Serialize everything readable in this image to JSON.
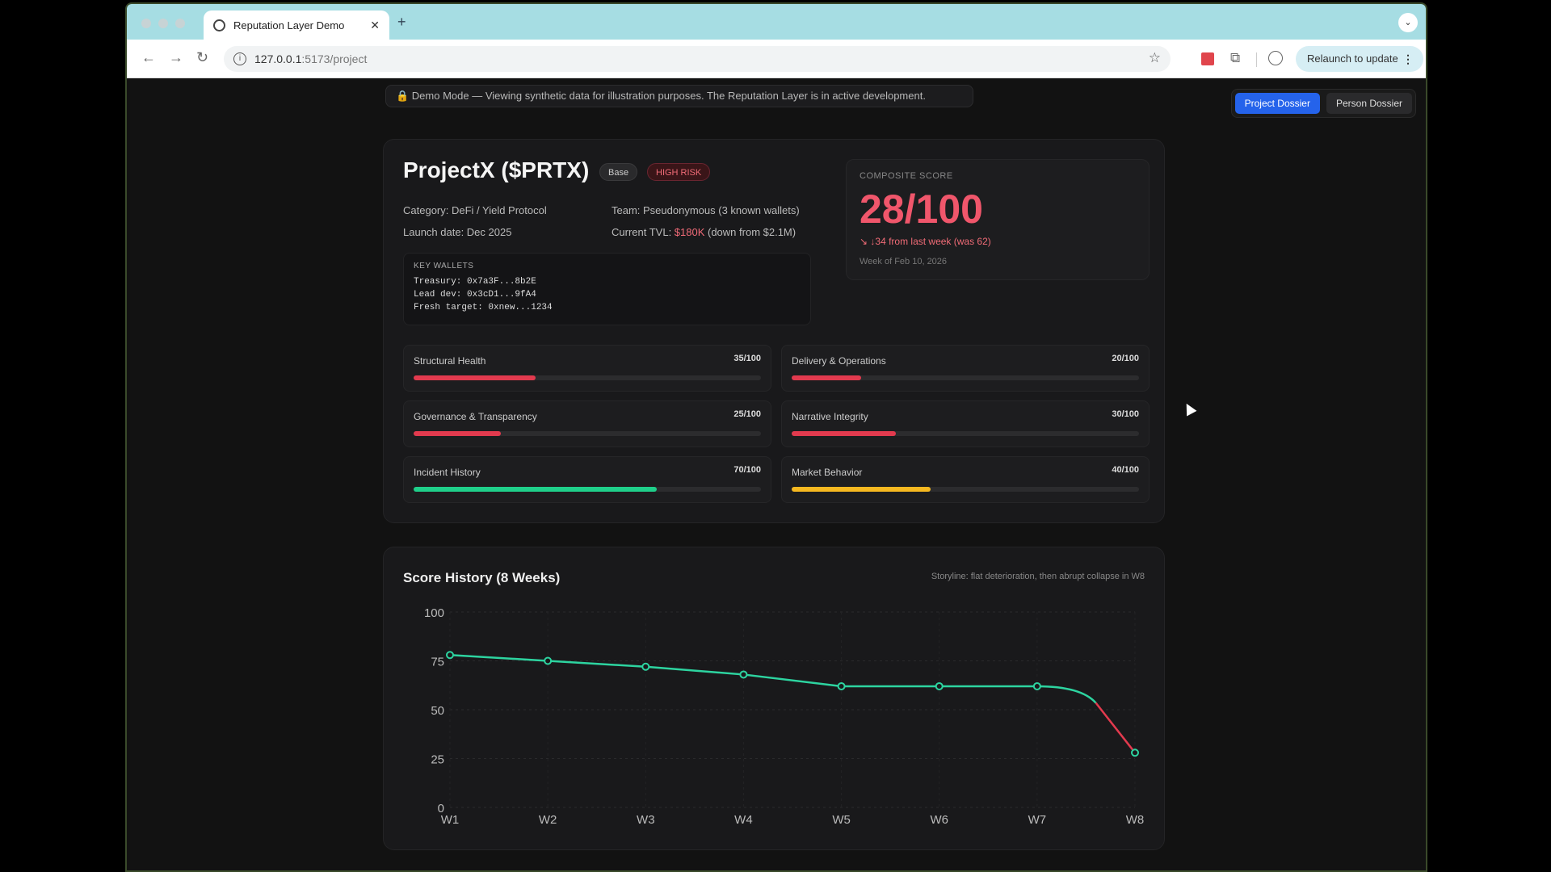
{
  "browser": {
    "tab_title": "Reputation Layer Demo",
    "new_tab": "+",
    "url_host": "127.0.0.1",
    "url_path": ":5173/project",
    "relaunch_label": "Relaunch to update"
  },
  "banner": {
    "text": "🔒 Demo Mode — Viewing synthetic data for illustration purposes. The Reputation Layer is in active development."
  },
  "switcher": {
    "project": "Project Dossier",
    "person": "Person Dossier"
  },
  "project": {
    "name": "ProjectX ($PRTX)",
    "chain": "Base",
    "risk": "HIGH RISK",
    "category": "Category: DeFi / Yield Protocol",
    "launch": "Launch date: Dec 2025",
    "team": "Team: Pseudonymous (3 known wallets)",
    "tvl_prefix": "Current TVL: ",
    "tvl_value": "$180K",
    "tvl_suffix": " (down from $2.1M)",
    "wallets_header": "KEY WALLETS",
    "wallets": [
      "Treasury: 0x7a3F...8b2E",
      "Lead dev: 0x3cD1...9fA4",
      "Fresh target: 0xnew...1234"
    ]
  },
  "composite": {
    "label": "COMPOSITE SCORE",
    "score": "28/100",
    "delta": "↓34 from last week (was 62)",
    "week": "Week of Feb 10, 2026"
  },
  "metrics": [
    {
      "name": "Structural Health",
      "value": "35/100",
      "pct": 35,
      "color": "#e23a4e"
    },
    {
      "name": "Delivery & Operations",
      "value": "20/100",
      "pct": 20,
      "color": "#e23a4e"
    },
    {
      "name": "Governance & Transparency",
      "value": "25/100",
      "pct": 25,
      "color": "#e23a4e"
    },
    {
      "name": "Narrative Integrity",
      "value": "30/100",
      "pct": 30,
      "color": "#e23a4e"
    },
    {
      "name": "Incident History",
      "value": "70/100",
      "pct": 70,
      "color": "#1fcf8a"
    },
    {
      "name": "Market Behavior",
      "value": "40/100",
      "pct": 40,
      "color": "#f5b820"
    }
  ],
  "history": {
    "title": "Score History (8 Weeks)",
    "storyline": "Storyline: flat deterioration, then abrupt collapse in W8"
  },
  "chart_data": {
    "type": "line",
    "categories": [
      "W1",
      "W2",
      "W3",
      "W4",
      "W5",
      "W6",
      "W7",
      "W8"
    ],
    "values": [
      78,
      75,
      72,
      68,
      62,
      62,
      62,
      28
    ],
    "ylim": [
      0,
      100
    ],
    "yticks": [
      "0",
      "25",
      "50",
      "75",
      "100"
    ],
    "grid": true,
    "colors": {
      "line": "#2dd4a0",
      "collapse": "#e23a4e"
    }
  }
}
